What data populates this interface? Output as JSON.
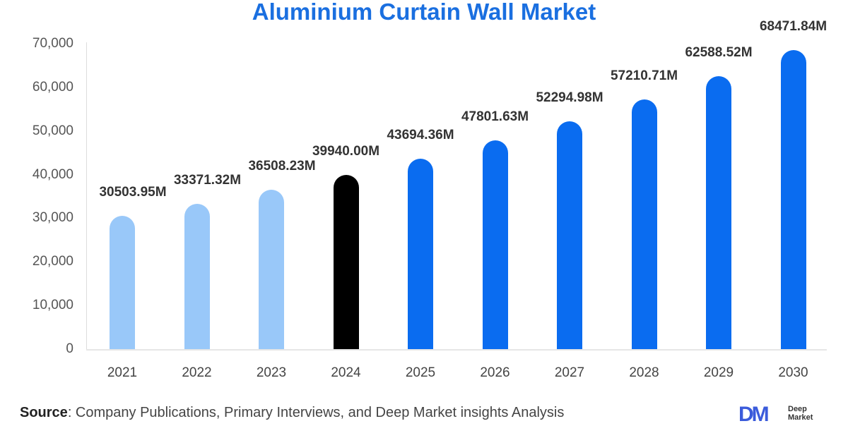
{
  "title": "Aluminium Curtain Wall Market",
  "chart_data": {
    "type": "bar",
    "title": "Aluminium Curtain Wall Market",
    "xlabel": "",
    "ylabel": "",
    "categories": [
      "2021",
      "2022",
      "2023",
      "2024",
      "2025",
      "2026",
      "2027",
      "2028",
      "2029",
      "2030"
    ],
    "values": [
      30503.95,
      33371.32,
      36508.23,
      39940.0,
      43694.36,
      47801.63,
      52294.98,
      57210.71,
      62588.52,
      68471.84
    ],
    "value_labels": [
      "30503.95M",
      "33371.32M",
      "36508.23M",
      "39940.00M",
      "43694.36M",
      "47801.63M",
      "52294.98M",
      "57210.71M",
      "62588.52M",
      "68471.84M"
    ],
    "bar_colors": [
      "#99c8f9",
      "#99c8f9",
      "#99c8f9",
      "#000000",
      "#0a6cf0",
      "#0a6cf0",
      "#0a6cf0",
      "#0a6cf0",
      "#0a6cf0",
      "#0a6cf0"
    ],
    "ylim": [
      0,
      70000
    ],
    "yticks": [
      "0",
      "10,000",
      "20,000",
      "30,000",
      "40,000",
      "50,000",
      "60,000",
      "70,000"
    ],
    "grid": false,
    "legend": null
  },
  "source": {
    "label": "Source",
    "text": ": Company Publications, Primary Interviews, and Deep Market insights Analysis"
  },
  "logo": {
    "mark": "DM",
    "line1": "Deep",
    "line2": "Market"
  },
  "colors": {
    "title": "#1a6fe0",
    "historical": "#99c8f9",
    "base_year": "#000000",
    "forecast": "#0a6cf0"
  }
}
